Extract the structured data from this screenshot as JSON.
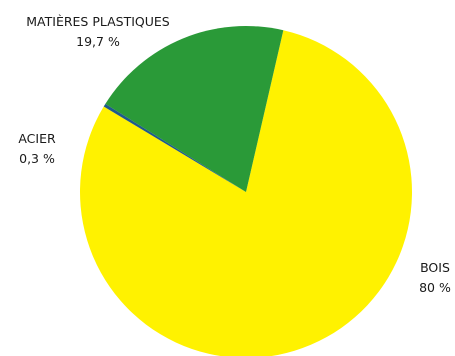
{
  "chart_data": {
    "type": "pie",
    "slices": [
      {
        "category": "BOIS",
        "value": 80,
        "value_label": "80 %",
        "color": "#FFF200"
      },
      {
        "category": "ACIER",
        "value": 0.3,
        "value_label": "0,3 %",
        "color": "#1F5A8C"
      },
      {
        "category": "MATIÈRES PLASTIQUES",
        "value": 19.7,
        "value_label": "19,7 %",
        "color": "#2A9A38"
      }
    ],
    "title": "",
    "legend": "none"
  }
}
